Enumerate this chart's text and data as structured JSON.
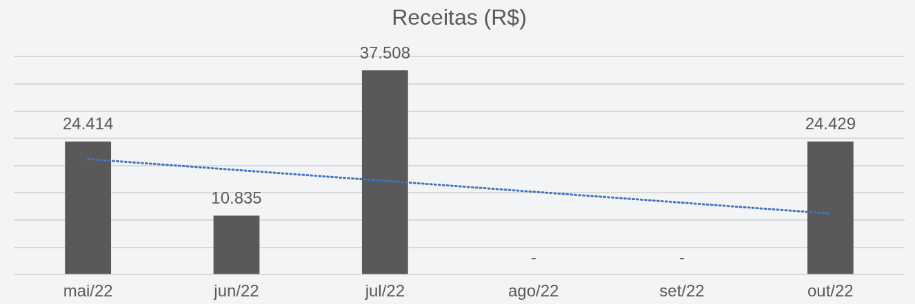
{
  "chart_data": {
    "type": "bar",
    "title": "Receitas (R$)",
    "categories": [
      "mai/22",
      "jun/22",
      "jul/22",
      "ago/22",
      "set/22",
      "out/22"
    ],
    "series": [
      {
        "color": "#595959",
        "values": [
          24414,
          10835,
          37508,
          0,
          0,
          24429
        ],
        "value_labels": [
          "24.414",
          "10.835",
          "37.508",
          "-",
          "-",
          "24.429"
        ]
      },
      {
        "type": "line",
        "color": "#4472c4",
        "x": [
          "mai/22",
          "out/22"
        ],
        "values": [
          21200,
          11200
        ],
        "line_style": "dotted",
        "marker": "none"
      }
    ],
    "ylim": [
      0,
      40000
    ],
    "yticks": [
      {
        "value": 0,
        "label": null
      },
      {
        "value": 5000,
        "label": null
      },
      {
        "value": 10000,
        "label": null
      },
      {
        "value": 15000,
        "label": null
      },
      {
        "value": 20000,
        "label": null
      },
      {
        "value": 25000,
        "label": null
      },
      {
        "value": 30000,
        "label": null
      },
      {
        "value": 35000,
        "label": null
      },
      {
        "value": 40000,
        "label": null
      }
    ],
    "grid": "y",
    "tick_labels": "x"
  }
}
